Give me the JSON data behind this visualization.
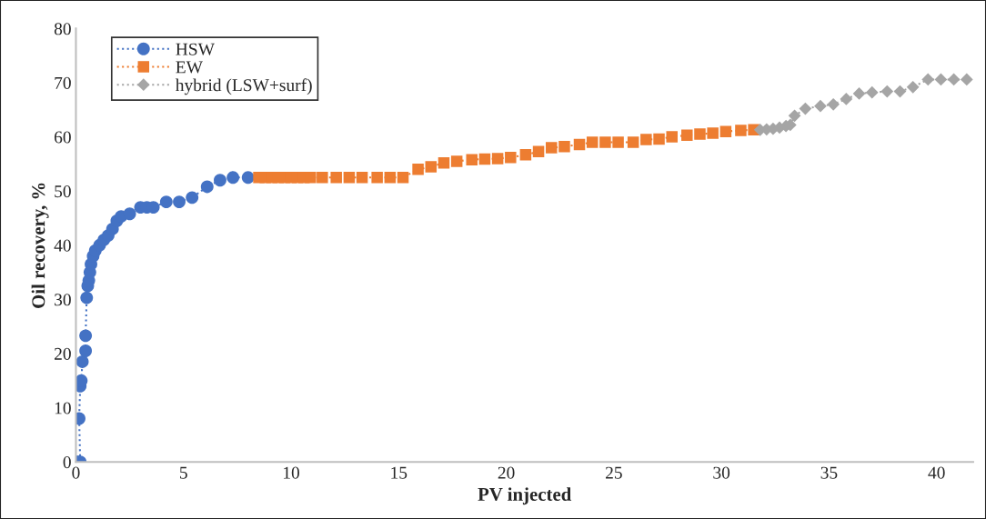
{
  "chart_data": {
    "type": "line",
    "xlabel": "PV injected",
    "ylabel": "Oil recovery, %",
    "xlim": [
      0,
      41.7
    ],
    "xticks": [
      0,
      5,
      10,
      15,
      20,
      25,
      30,
      35,
      40
    ],
    "ylim": [
      0,
      80
    ],
    "yticks": [
      0,
      10,
      20,
      30,
      40,
      50,
      60,
      70,
      80
    ],
    "grid": false,
    "legend": "top left",
    "line_style": "dotted",
    "series": [
      {
        "name": "HSW",
        "color": "#4472c4",
        "marker": "circle",
        "x": [
          0,
          0.1,
          0.2,
          0.15,
          0.2,
          0.25,
          0.3,
          0.4,
          0.45,
          0.45,
          0.5,
          0.55,
          0.6,
          0.65,
          0.7,
          0.8,
          0.9,
          1.1,
          1.3,
          1.5,
          1.7,
          1.9,
          2.1,
          2.5,
          2.8,
          3.0,
          3.3,
          3.6,
          4.2,
          4.8,
          5.4,
          6.1,
          6.7,
          7.3,
          8.0
        ],
        "values": [
          0,
          0,
          0,
          8,
          14,
          15,
          18.5,
          null,
          20.5,
          23.3,
          30.3,
          32.5,
          33.5,
          35,
          36.5,
          38,
          39,
          40,
          41,
          41.8,
          43,
          44.5,
          45.3,
          45.8,
          null,
          47,
          47,
          47,
          48,
          48,
          48.8,
          50.8,
          52,
          52.5,
          52.5
        ]
      },
      {
        "name": "EW",
        "color": "#ed7d31",
        "marker": "square",
        "x": [
          8.5,
          8.8,
          9.1,
          9.4,
          9.7,
          10.0,
          10.3,
          10.6,
          10.9,
          11.45,
          12.1,
          12.7,
          13.3,
          14.0,
          14.6,
          15.2,
          15.9,
          16.5,
          17.1,
          17.7,
          18.4,
          19.0,
          19.6,
          20.2,
          20.9,
          21.5,
          22.1,
          22.7,
          23.4,
          24.0,
          24.6,
          25.2,
          25.9,
          26.5,
          27.1,
          27.7,
          28.4,
          29.0,
          29.6,
          30.2,
          30.9,
          31.5
        ],
        "values": [
          52.5,
          52.5,
          52.5,
          52.5,
          52.5,
          52.5,
          52.5,
          52.5,
          52.5,
          52.5,
          52.5,
          52.5,
          52.5,
          52.5,
          52.5,
          52.5,
          54,
          54.5,
          55.2,
          55.5,
          55.8,
          55.9,
          56,
          56.2,
          56.7,
          57.3,
          58,
          58.2,
          58.6,
          59,
          59,
          59,
          59,
          59.5,
          59.6,
          60,
          60.3,
          60.5,
          60.7,
          61,
          61.2,
          61.3
        ]
      },
      {
        "name": "hybrid (LSW+surf)",
        "color": "#a5a5a5",
        "marker": "diamond",
        "x": [
          31.8,
          32.1,
          32.4,
          32.7,
          33.0,
          33.2,
          33.4,
          33.9,
          34.6,
          35.2,
          35.8,
          36.4,
          37.0,
          37.7,
          38.3,
          38.9,
          39.6,
          40.2,
          40.8,
          41.4
        ],
        "values": [
          61.3,
          61.4,
          61.5,
          61.7,
          62,
          62.2,
          63.9,
          65.2,
          65.7,
          66.0,
          67.0,
          68,
          68.2,
          68.4,
          68.4,
          69.2,
          70.6,
          70.6,
          70.6,
          70.6
        ]
      }
    ]
  }
}
